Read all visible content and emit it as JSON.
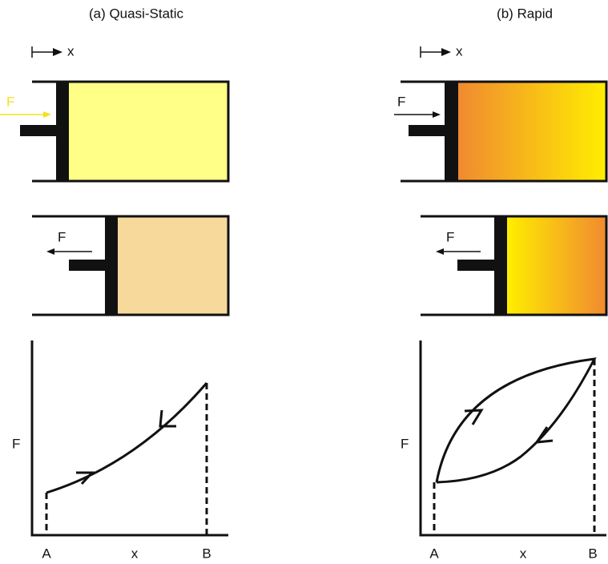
{
  "panels": [
    {
      "title": "(a) Quasi-Static",
      "x_label": "x",
      "top_force": "F",
      "middle_force": "F",
      "plot": {
        "y_label": "F",
        "x_labels": [
          "A",
          "x",
          "B"
        ]
      }
    },
    {
      "title": "(b) Rapid",
      "x_label": "x",
      "top_force": "F",
      "middle_force": "F",
      "plot": {
        "y_label": "F",
        "x_labels": [
          "A",
          "x",
          "B"
        ]
      }
    }
  ]
}
